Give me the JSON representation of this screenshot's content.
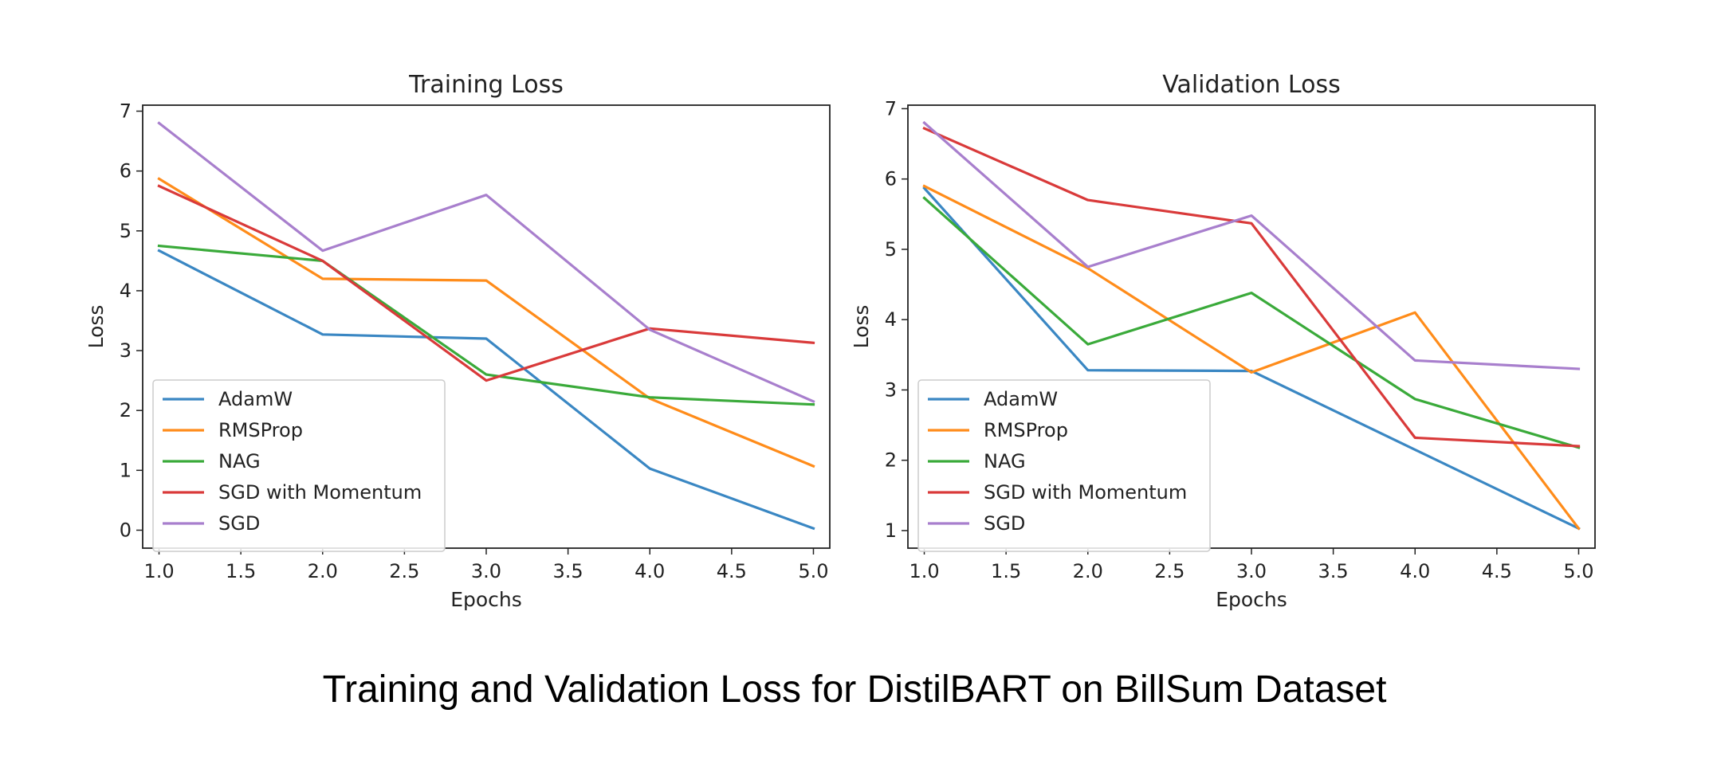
{
  "caption": "Training and Validation Loss for DistilBART on BillSum Dataset",
  "colors": {
    "AdamW": "#3a87c3",
    "RMSProp": "#ff8c1a",
    "NAG": "#3aaa3a",
    "SGD with Momentum": "#d93a3a",
    "SGD": "#a87fcd"
  },
  "chart_data": [
    {
      "type": "line",
      "title": "Training Loss",
      "xlabel": "Epochs",
      "ylabel": "Loss",
      "x": [
        1.0,
        2.0,
        3.0,
        4.0,
        5.0
      ],
      "xlim": [
        0.9,
        5.1
      ],
      "ylim": [
        -0.3,
        7.1
      ],
      "xticks": [
        "1.0",
        "1.5",
        "2.0",
        "2.5",
        "3.0",
        "3.5",
        "4.0",
        "4.5",
        "5.0"
      ],
      "yticks": [
        "0",
        "1",
        "2",
        "3",
        "4",
        "5",
        "6",
        "7"
      ],
      "legend": "lower-left",
      "grid": false,
      "series": [
        {
          "name": "AdamW",
          "values": [
            4.67,
            3.27,
            3.2,
            1.03,
            0.03
          ]
        },
        {
          "name": "RMSProp",
          "values": [
            5.87,
            4.2,
            4.17,
            2.2,
            1.07
          ]
        },
        {
          "name": "NAG",
          "values": [
            4.75,
            4.5,
            2.6,
            2.22,
            2.1
          ]
        },
        {
          "name": "SGD with Momentum",
          "values": [
            5.75,
            4.5,
            2.5,
            3.37,
            3.13
          ]
        },
        {
          "name": "SGD",
          "values": [
            6.8,
            4.67,
            5.6,
            3.35,
            2.15
          ]
        }
      ]
    },
    {
      "type": "line",
      "title": "Validation Loss",
      "xlabel": "Epochs",
      "ylabel": "Loss",
      "x": [
        1.0,
        2.0,
        3.0,
        4.0,
        5.0
      ],
      "xlim": [
        0.9,
        5.1
      ],
      "ylim": [
        0.75,
        7.05
      ],
      "xticks": [
        "1.0",
        "1.5",
        "2.0",
        "2.5",
        "3.0",
        "3.5",
        "4.0",
        "4.5",
        "5.0"
      ],
      "yticks": [
        "1",
        "2",
        "3",
        "4",
        "5",
        "6",
        "7"
      ],
      "legend": "lower-left",
      "grid": false,
      "series": [
        {
          "name": "AdamW",
          "values": [
            5.87,
            3.28,
            3.27,
            2.15,
            1.03
          ]
        },
        {
          "name": "RMSProp",
          "values": [
            5.9,
            4.73,
            3.25,
            4.1,
            1.03
          ]
        },
        {
          "name": "NAG",
          "values": [
            5.73,
            3.65,
            4.38,
            2.87,
            2.18
          ]
        },
        {
          "name": "SGD with Momentum",
          "values": [
            6.72,
            5.7,
            5.37,
            2.32,
            2.2
          ]
        },
        {
          "name": "SGD",
          "values": [
            6.8,
            4.75,
            5.48,
            3.42,
            3.3
          ]
        }
      ]
    }
  ]
}
